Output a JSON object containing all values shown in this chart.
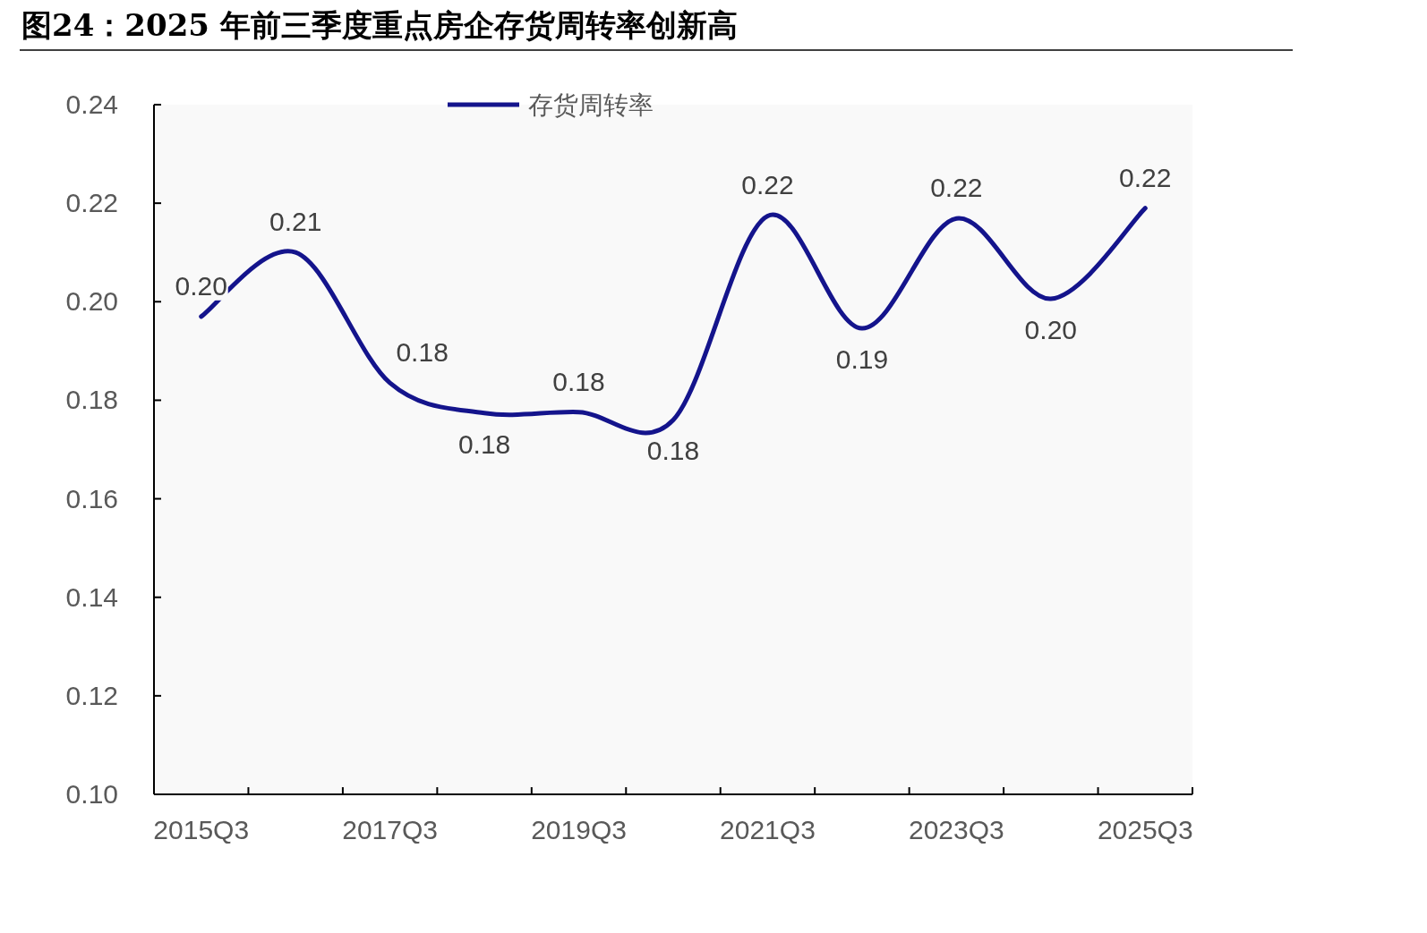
{
  "chart_data": {
    "type": "line",
    "title": "图24：2025 年前三季度重点房企存货周转率创新高",
    "categories": [
      "2015Q3",
      null,
      "2017Q3",
      null,
      "2019Q3",
      null,
      "2021Q3",
      null,
      "2023Q3",
      null,
      "2025Q3"
    ],
    "series": [
      {
        "name": "存货周转率",
        "color": "#14148c",
        "values": [
          0.197,
          0.21,
          0.1835,
          0.1774,
          0.1776,
          0.176,
          0.2174,
          0.1946,
          0.2169,
          0.2006,
          0.219
        ],
        "value_labels": [
          "0.20",
          "0.21",
          "0.18",
          "0.18",
          "0.18",
          "0.18",
          "0.22",
          "0.19",
          "0.22",
          "0.20",
          "0.22"
        ]
      }
    ],
    "ylim": [
      0.1,
      0.24
    ],
    "yticks": [
      {
        "value": 0.1,
        "label": "0.10"
      },
      {
        "value": 0.12,
        "label": "0.12"
      },
      {
        "value": 0.14,
        "label": "0.14"
      },
      {
        "value": 0.16,
        "label": "0.16"
      },
      {
        "value": 0.18,
        "label": "0.18"
      },
      {
        "value": 0.2,
        "label": "0.20"
      },
      {
        "value": 0.22,
        "label": "0.22"
      },
      {
        "value": 0.24,
        "label": "0.24"
      }
    ],
    "legend": "top",
    "grid": false,
    "marker": "none",
    "line_style": "solid"
  }
}
